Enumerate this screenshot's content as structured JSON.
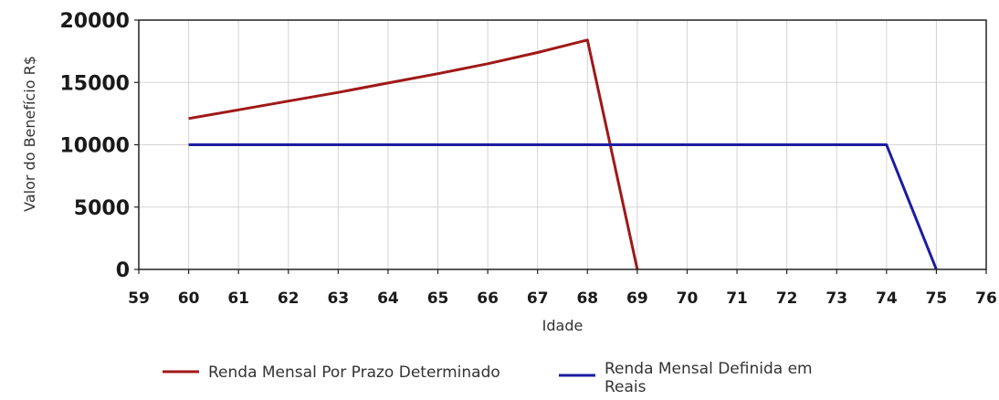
{
  "chart_data": {
    "type": "line",
    "title": "",
    "xlabel": "Idade",
    "ylabel": "Valor do Benefício R$",
    "xlim": [
      59,
      76
    ],
    "ylim": [
      0,
      20000
    ],
    "x_ticks": [
      "59",
      "60",
      "61",
      "62",
      "63",
      "64",
      "65",
      "66",
      "67",
      "68",
      "69",
      "70",
      "71",
      "72",
      "73",
      "74",
      "75",
      "76"
    ],
    "y_ticks": [
      "0",
      "5000",
      "10000",
      "15000",
      "20000"
    ],
    "grid": true,
    "legend_position": "bottom",
    "series": [
      {
        "name": "Renda Mensal Por Prazo Determinado",
        "legend_lines": [
          "Renda Mensal Por Prazo Determinado"
        ],
        "color": "#a01818",
        "points": [
          {
            "x": 60,
            "y": 12100
          },
          {
            "x": 61,
            "y": 12800
          },
          {
            "x": 62,
            "y": 13500
          },
          {
            "x": 63,
            "y": 14200
          },
          {
            "x": 64,
            "y": 14950
          },
          {
            "x": 65,
            "y": 15700
          },
          {
            "x": 66,
            "y": 16500
          },
          {
            "x": 67,
            "y": 17400
          },
          {
            "x": 68,
            "y": 18400
          },
          {
            "x": 69,
            "y": 0
          }
        ]
      },
      {
        "name": "Renda Mensal Definida em Reais",
        "legend_lines": [
          "Renda Mensal Definida em",
          "Reais"
        ],
        "color": "#1c1ca0",
        "points": [
          {
            "x": 60,
            "y": 10000
          },
          {
            "x": 61,
            "y": 10000
          },
          {
            "x": 62,
            "y": 10000
          },
          {
            "x": 63,
            "y": 10000
          },
          {
            "x": 64,
            "y": 10000
          },
          {
            "x": 65,
            "y": 10000
          },
          {
            "x": 66,
            "y": 10000
          },
          {
            "x": 67,
            "y": 10000
          },
          {
            "x": 68,
            "y": 10000
          },
          {
            "x": 69,
            "y": 10000
          },
          {
            "x": 70,
            "y": 10000
          },
          {
            "x": 71,
            "y": 10000
          },
          {
            "x": 72,
            "y": 10000
          },
          {
            "x": 73,
            "y": 10000
          },
          {
            "x": 74,
            "y": 10000
          },
          {
            "x": 75,
            "y": 0
          }
        ]
      }
    ]
  }
}
